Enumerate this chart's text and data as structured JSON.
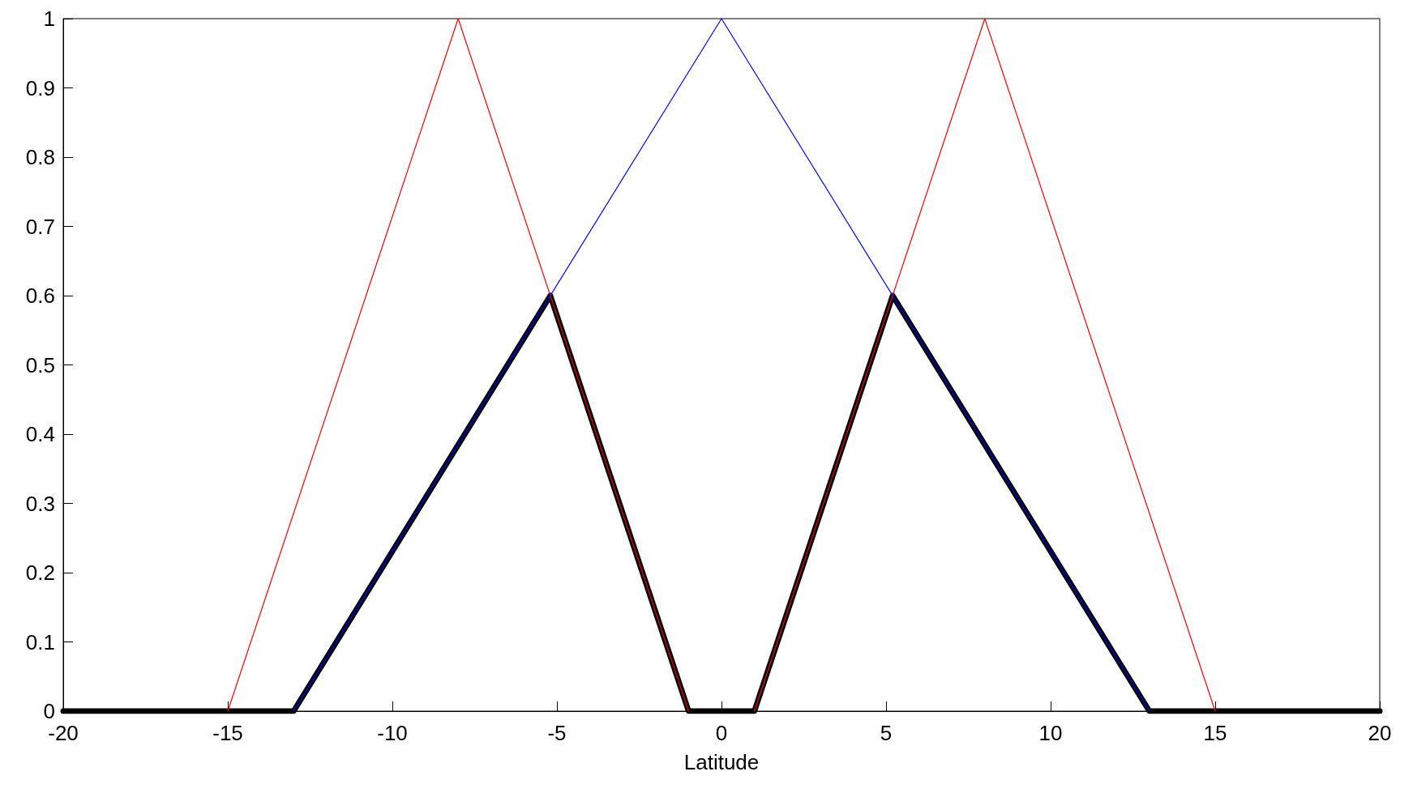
{
  "chart_data": {
    "type": "line",
    "xlabel": "Latitude",
    "xlim": [
      -20,
      20
    ],
    "xticks": [
      -20,
      -15,
      -10,
      -5,
      0,
      5,
      10,
      15,
      20
    ],
    "ylim": [
      0,
      1
    ],
    "yticks": [
      0,
      0.1,
      0.2,
      0.3,
      0.4,
      0.5,
      0.6,
      0.7,
      0.8,
      0.9,
      1
    ],
    "grid": false,
    "marker": "none",
    "line_style": "solid",
    "series": [
      {
        "color": "#ff0000",
        "x": [
          -15,
          -8,
          -1
        ],
        "values": [
          0,
          1,
          0
        ]
      },
      {
        "color": "#ff0000",
        "x": [
          1,
          8,
          15
        ],
        "values": [
          0,
          1,
          0
        ]
      },
      {
        "color": "#0000ff",
        "x": [
          -13,
          0,
          13
        ],
        "values": [
          0,
          1,
          0
        ]
      },
      {
        "color": "#000000",
        "x": [
          -20,
          -13,
          -5.2,
          -1,
          1,
          5.2,
          13,
          20
        ],
        "values": [
          0,
          0,
          0.6,
          0,
          0,
          0.6,
          0,
          0
        ]
      }
    ]
  }
}
